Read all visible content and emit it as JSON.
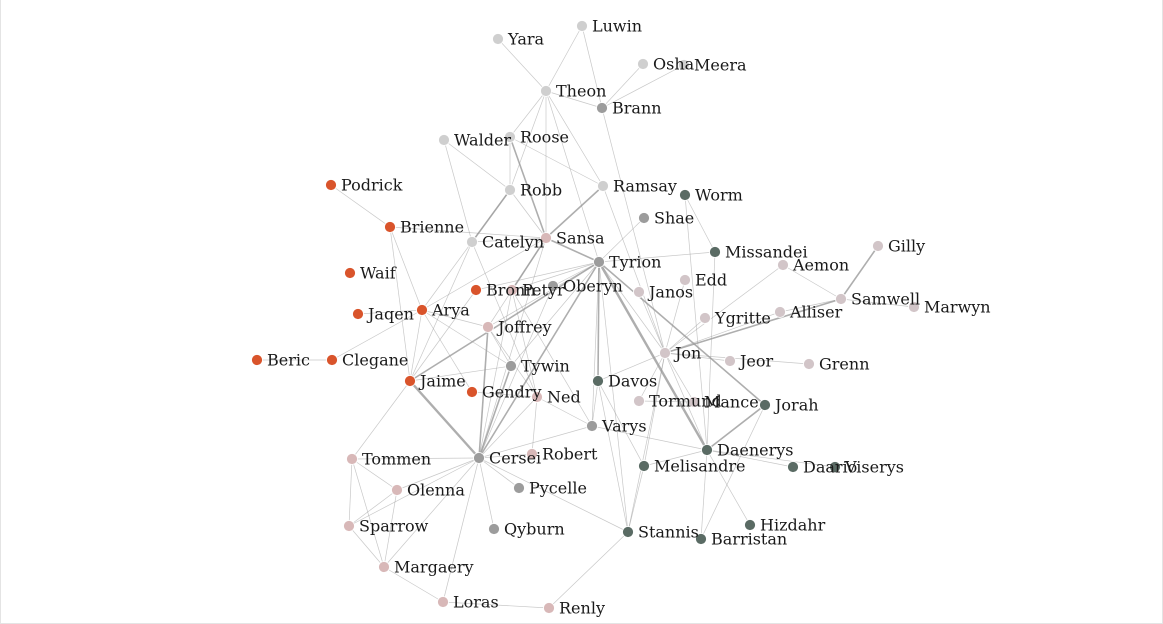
{
  "graph": {
    "colors": {
      "orange": "#d9542b",
      "dark": "#5a6b64",
      "gray": "#9c9c9c",
      "light": "#d2c5c8",
      "pale": "#cfcfcf",
      "pink": "#d8b8b8",
      "edge": "#9a9a9a"
    },
    "nodes": [
      {
        "id": "luwin",
        "label": "Luwin",
        "group": "pale"
      },
      {
        "id": "yara",
        "label": "Yara",
        "group": "pale"
      },
      {
        "id": "osha",
        "label": "Osha",
        "group": "pale"
      },
      {
        "id": "meera",
        "label": "Meera",
        "group": "pale"
      },
      {
        "id": "theon",
        "label": "Theon",
        "group": "pale"
      },
      {
        "id": "brann",
        "label": "Brann",
        "group": "gray"
      },
      {
        "id": "walder",
        "label": "Walder",
        "group": "pale"
      },
      {
        "id": "roose",
        "label": "Roose",
        "group": "pale"
      },
      {
        "id": "podrick",
        "label": "Podrick",
        "group": "orange"
      },
      {
        "id": "robb",
        "label": "Robb",
        "group": "pale"
      },
      {
        "id": "ramsay",
        "label": "Ramsay",
        "group": "pale"
      },
      {
        "id": "worm",
        "label": "Worm",
        "group": "dark"
      },
      {
        "id": "shae",
        "label": "Shae",
        "group": "gray"
      },
      {
        "id": "brienne",
        "label": "Brienne",
        "group": "orange"
      },
      {
        "id": "catelyn",
        "label": "Catelyn",
        "group": "pale"
      },
      {
        "id": "sansa",
        "label": "Sansa",
        "group": "pink"
      },
      {
        "id": "missandei",
        "label": "Missandei",
        "group": "dark"
      },
      {
        "id": "gilly",
        "label": "Gilly",
        "group": "light"
      },
      {
        "id": "tyrion",
        "label": "Tyrion",
        "group": "gray"
      },
      {
        "id": "aemon",
        "label": "Aemon",
        "group": "light"
      },
      {
        "id": "waif",
        "label": "Waif",
        "group": "orange"
      },
      {
        "id": "edd",
        "label": "Edd",
        "group": "light"
      },
      {
        "id": "bronn",
        "label": "Bronn",
        "group": "orange"
      },
      {
        "id": "petyr",
        "label": "Petyr",
        "group": "pink"
      },
      {
        "id": "oberyn",
        "label": "Oberyn",
        "group": "gray"
      },
      {
        "id": "janos",
        "label": "Janos",
        "group": "light"
      },
      {
        "id": "samwell",
        "label": "Samwell",
        "group": "light"
      },
      {
        "id": "marwyn",
        "label": "Marwyn",
        "group": "light"
      },
      {
        "id": "jaqen",
        "label": "Jaqen",
        "group": "orange"
      },
      {
        "id": "arya",
        "label": "Arya",
        "group": "orange"
      },
      {
        "id": "ygritte",
        "label": "Ygritte",
        "group": "light"
      },
      {
        "id": "alliser",
        "label": "Alliser",
        "group": "light"
      },
      {
        "id": "joffrey",
        "label": "Joffrey",
        "group": "pink"
      },
      {
        "id": "jon",
        "label": "Jon",
        "group": "light"
      },
      {
        "id": "beric",
        "label": "Beric",
        "group": "orange"
      },
      {
        "id": "clegane",
        "label": "Clegane",
        "group": "orange"
      },
      {
        "id": "jeor",
        "label": "Jeor",
        "group": "light"
      },
      {
        "id": "grenn",
        "label": "Grenn",
        "group": "light"
      },
      {
        "id": "tywin",
        "label": "Tywin",
        "group": "gray"
      },
      {
        "id": "jaime",
        "label": "Jaime",
        "group": "orange"
      },
      {
        "id": "davos",
        "label": "Davos",
        "group": "dark"
      },
      {
        "id": "gendry",
        "label": "Gendry",
        "group": "orange"
      },
      {
        "id": "ned",
        "label": "Ned",
        "group": "pink"
      },
      {
        "id": "tormund",
        "label": "Tormund",
        "group": "light"
      },
      {
        "id": "mance",
        "label": "Mance",
        "group": "light"
      },
      {
        "id": "jorah",
        "label": "Jorah",
        "group": "dark"
      },
      {
        "id": "varys",
        "label": "Varys",
        "group": "gray"
      },
      {
        "id": "daenerys",
        "label": "Daenerys",
        "group": "dark"
      },
      {
        "id": "tommen",
        "label": "Tommen",
        "group": "pink"
      },
      {
        "id": "cersei",
        "label": "Cersei",
        "group": "gray"
      },
      {
        "id": "robert",
        "label": "Robert",
        "group": "pink"
      },
      {
        "id": "melisandre",
        "label": "Melisandre",
        "group": "dark"
      },
      {
        "id": "daario",
        "label": "Daario",
        "group": "dark"
      },
      {
        "id": "viserys",
        "label": "Viserys",
        "group": "dark"
      },
      {
        "id": "olenna",
        "label": "Olenna",
        "group": "pink"
      },
      {
        "id": "pycelle",
        "label": "Pycelle",
        "group": "gray"
      },
      {
        "id": "sparrow",
        "label": "Sparrow",
        "group": "pink"
      },
      {
        "id": "qyburn",
        "label": "Qyburn",
        "group": "gray"
      },
      {
        "id": "stannis",
        "label": "Stannis",
        "group": "dark"
      },
      {
        "id": "hizdahr",
        "label": "Hizdahr",
        "group": "dark"
      },
      {
        "id": "barristan",
        "label": "Barristan",
        "group": "dark"
      },
      {
        "id": "margaery",
        "label": "Margaery",
        "group": "pink"
      },
      {
        "id": "loras",
        "label": "Loras",
        "group": "pink"
      },
      {
        "id": "renly",
        "label": "Renly",
        "group": "pink"
      }
    ],
    "edges": [
      [
        "luwin",
        "theon",
        1
      ],
      [
        "yara",
        "theon",
        1
      ],
      [
        "osha",
        "brann",
        1
      ],
      [
        "meera",
        "brann",
        1
      ],
      [
        "luwin",
        "brann",
        1
      ],
      [
        "theon",
        "brann",
        1
      ],
      [
        "theon",
        "roose",
        1
      ],
      [
        "theon",
        "robb",
        1
      ],
      [
        "theon",
        "sansa",
        1
      ],
      [
        "theon",
        "ramsay",
        1
      ],
      [
        "theon",
        "tyrion",
        1
      ],
      [
        "walder",
        "robb",
        1
      ],
      [
        "walder",
        "catelyn",
        1
      ],
      [
        "roose",
        "robb",
        1
      ],
      [
        "roose",
        "sansa",
        2
      ],
      [
        "roose",
        "ramsay",
        1
      ],
      [
        "podrick",
        "brienne",
        1
      ],
      [
        "robb",
        "catelyn",
        2
      ],
      [
        "robb",
        "sansa",
        1
      ],
      [
        "robb",
        "arya",
        1
      ],
      [
        "ramsay",
        "sansa",
        2
      ],
      [
        "ramsay",
        "jon",
        1
      ],
      [
        "brann",
        "jon",
        1
      ],
      [
        "worm",
        "missandei",
        1
      ],
      [
        "worm",
        "daenerys",
        1
      ],
      [
        "shae",
        "tyrion",
        1
      ],
      [
        "brienne",
        "jaime",
        1
      ],
      [
        "brienne",
        "sansa",
        1
      ],
      [
        "brienne",
        "arya",
        1
      ],
      [
        "catelyn",
        "sansa",
        1
      ],
      [
        "catelyn",
        "jaime",
        1
      ],
      [
        "catelyn",
        "ned",
        1
      ],
      [
        "sansa",
        "tyrion",
        2
      ],
      [
        "sansa",
        "joffrey",
        1
      ],
      [
        "sansa",
        "petyr",
        2
      ],
      [
        "sansa",
        "cersei",
        1
      ],
      [
        "sansa",
        "arya",
        1
      ],
      [
        "missandei",
        "tyrion",
        1
      ],
      [
        "missandei",
        "daenerys",
        1
      ],
      [
        "gilly",
        "samwell",
        2
      ],
      [
        "tyrion",
        "jaime",
        2
      ],
      [
        "tyrion",
        "cersei",
        2
      ],
      [
        "tyrion",
        "joffrey",
        1
      ],
      [
        "tyrion",
        "varys",
        1
      ],
      [
        "tyrion",
        "daenerys",
        3
      ],
      [
        "tyrion",
        "jon",
        1
      ],
      [
        "tyrion",
        "tywin",
        1
      ],
      [
        "tyrion",
        "oberyn",
        1
      ],
      [
        "tyrion",
        "bronn",
        1
      ],
      [
        "tyrion",
        "davos",
        2
      ],
      [
        "tyrion",
        "jorah",
        2
      ],
      [
        "tyrion",
        "stannis",
        1
      ],
      [
        "tyrion",
        "petyr",
        1
      ],
      [
        "aemon",
        "jon",
        1
      ],
      [
        "aemon",
        "samwell",
        1
      ],
      [
        "edd",
        "jon",
        1
      ],
      [
        "bronn",
        "jaime",
        1
      ],
      [
        "petyr",
        "cersei",
        1
      ],
      [
        "petyr",
        "ned",
        1
      ],
      [
        "petyr",
        "varys",
        1
      ],
      [
        "oberyn",
        "cersei",
        1
      ],
      [
        "janos",
        "jon",
        1
      ],
      [
        "samwell",
        "jon",
        2
      ],
      [
        "samwell",
        "marwyn",
        1
      ],
      [
        "samwell",
        "alliser",
        1
      ],
      [
        "jaqen",
        "arya",
        1
      ],
      [
        "arya",
        "clegane",
        1
      ],
      [
        "arya",
        "jaime",
        1
      ],
      [
        "arya",
        "tywin",
        1
      ],
      [
        "arya",
        "gendry",
        1
      ],
      [
        "arya",
        "joffrey",
        1
      ],
      [
        "ygritte",
        "jon",
        1
      ],
      [
        "alliser",
        "jon",
        1
      ],
      [
        "joffrey",
        "cersei",
        2
      ],
      [
        "joffrey",
        "tywin",
        1
      ],
      [
        "joffrey",
        "ned",
        1
      ],
      [
        "jon",
        "jeor",
        1
      ],
      [
        "jon",
        "grenn",
        1
      ],
      [
        "jon",
        "tormund",
        1
      ],
      [
        "jon",
        "mance",
        1
      ],
      [
        "jon",
        "davos",
        1
      ],
      [
        "jon",
        "melisandre",
        1
      ],
      [
        "jon",
        "stannis",
        1
      ],
      [
        "jon",
        "daenerys",
        1
      ],
      [
        "beric",
        "clegane",
        1
      ],
      [
        "tywin",
        "cersei",
        2
      ],
      [
        "tywin",
        "jaime",
        1
      ],
      [
        "jaime",
        "cersei",
        3
      ],
      [
        "jaime",
        "tommen",
        1
      ],
      [
        "davos",
        "stannis",
        1
      ],
      [
        "davos",
        "melisandre",
        1
      ],
      [
        "davos",
        "varys",
        1
      ],
      [
        "gendry",
        "ned",
        1
      ],
      [
        "ned",
        "robert",
        1
      ],
      [
        "ned",
        "cersei",
        1
      ],
      [
        "ned",
        "varys",
        1
      ],
      [
        "tormund",
        "mance",
        1
      ],
      [
        "jorah",
        "daenerys",
        2
      ],
      [
        "varys",
        "cersei",
        1
      ],
      [
        "varys",
        "daenerys",
        1
      ],
      [
        "daenerys",
        "daario",
        1
      ],
      [
        "daenerys",
        "viserys",
        1
      ],
      [
        "daenerys",
        "barristan",
        1
      ],
      [
        "daenerys",
        "hizdahr",
        1
      ],
      [
        "daenerys",
        "melisandre",
        1
      ],
      [
        "tommen",
        "cersei",
        1
      ],
      [
        "tommen",
        "olenna",
        1
      ],
      [
        "tommen",
        "sparrow",
        1
      ],
      [
        "tommen",
        "margaery",
        1
      ],
      [
        "cersei",
        "robert",
        1
      ],
      [
        "cersei",
        "pycelle",
        1
      ],
      [
        "cersei",
        "qyburn",
        1
      ],
      [
        "cersei",
        "sparrow",
        1
      ],
      [
        "cersei",
        "olenna",
        1
      ],
      [
        "cersei",
        "stannis",
        1
      ],
      [
        "cersei",
        "margaery",
        1
      ],
      [
        "cersei",
        "loras",
        1
      ],
      [
        "olenna",
        "sparrow",
        1
      ],
      [
        "olenna",
        "margaery",
        1
      ],
      [
        "sparrow",
        "margaery",
        1
      ],
      [
        "margaery",
        "loras",
        1
      ],
      [
        "loras",
        "renly",
        1
      ],
      [
        "renly",
        "stannis",
        1
      ],
      [
        "stannis",
        "melisandre",
        1
      ],
      [
        "barristan",
        "jorah",
        1
      ]
    ]
  }
}
